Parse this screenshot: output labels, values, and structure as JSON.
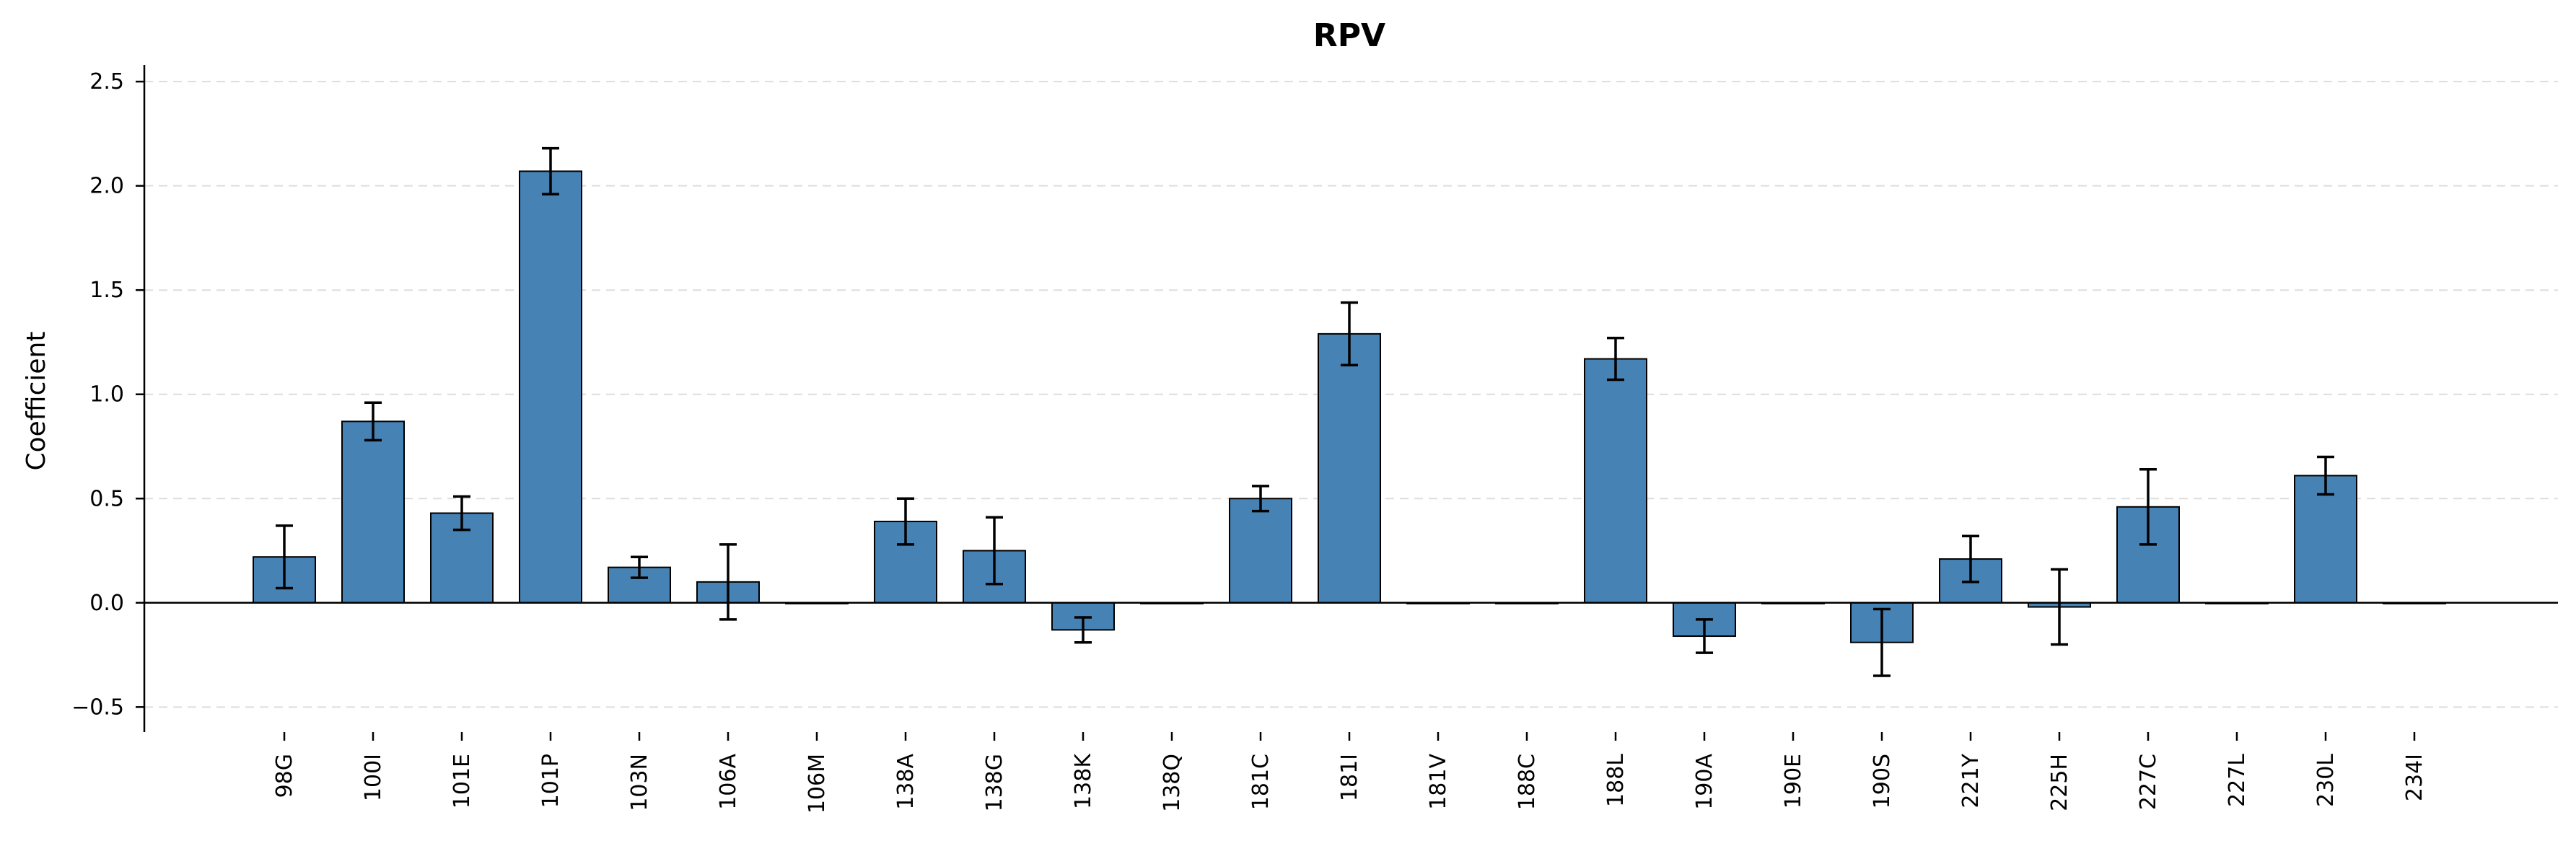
{
  "chart_data": {
    "type": "bar",
    "title": "RPV",
    "xlabel": "",
    "ylabel": "Coefficient",
    "ylim": [
      -0.62,
      2.58
    ],
    "yticks": [
      -0.5,
      0.0,
      0.5,
      1.0,
      1.5,
      2.0,
      2.5
    ],
    "ytick_labels": [
      "−0.5",
      "0.0",
      "0.5",
      "1.0",
      "1.5",
      "2.0",
      "2.5"
    ],
    "grid": "horizontal dashed",
    "categories": [
      "98G",
      "100I",
      "101E",
      "101P",
      "103N",
      "106A",
      "106M",
      "138A",
      "138G",
      "138K",
      "138Q",
      "181C",
      "181I",
      "181V",
      "188C",
      "188L",
      "190A",
      "190E",
      "190S",
      "221Y",
      "225H",
      "227C",
      "227L",
      "230L",
      "234I"
    ],
    "values": [
      0.22,
      0.87,
      0.43,
      2.07,
      0.17,
      0.1,
      0.0,
      0.39,
      0.25,
      -0.13,
      0.0,
      0.5,
      1.29,
      0.0,
      0.0,
      1.17,
      -0.16,
      0.0,
      -0.19,
      0.21,
      -0.02,
      0.46,
      0.0,
      0.61,
      0.0
    ],
    "error": [
      0.15,
      0.09,
      0.08,
      0.11,
      0.05,
      0.18,
      0.0,
      0.11,
      0.16,
      0.06,
      0.0,
      0.06,
      0.15,
      0.0,
      0.0,
      0.1,
      0.08,
      0.0,
      0.16,
      0.11,
      0.18,
      0.18,
      0.0,
      0.09,
      0.0
    ],
    "bar_color": "#4682b4",
    "edge_color": "#000000"
  }
}
